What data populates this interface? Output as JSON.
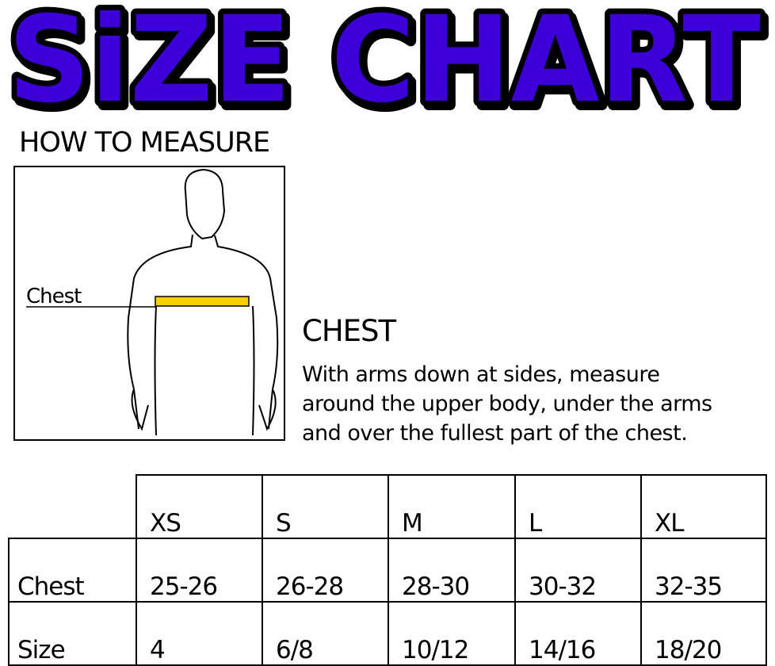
{
  "title": "SiZE CHART",
  "how_to_measure": "HOW TO MEASURE",
  "figure_label": "Chest",
  "chest_heading": "CHEST",
  "chest_instructions": [
    "With arms down at sides, measure",
    "around the upper body, under the arms",
    "and over the fullest part of the chest."
  ],
  "colors": {
    "title_fill": "#3d00d8",
    "title_outline": "#000000",
    "tape": "#f5d000"
  },
  "table": {
    "columns": [
      "XS",
      "S",
      "M",
      "L",
      "XL"
    ],
    "rows": [
      {
        "label": "Chest",
        "values": [
          "25-26",
          "26-28",
          "28-30",
          "30-32",
          "32-35"
        ]
      },
      {
        "label": "Size",
        "values": [
          "4",
          "6/8",
          "10/12",
          "14/16",
          "18/20"
        ]
      }
    ]
  }
}
